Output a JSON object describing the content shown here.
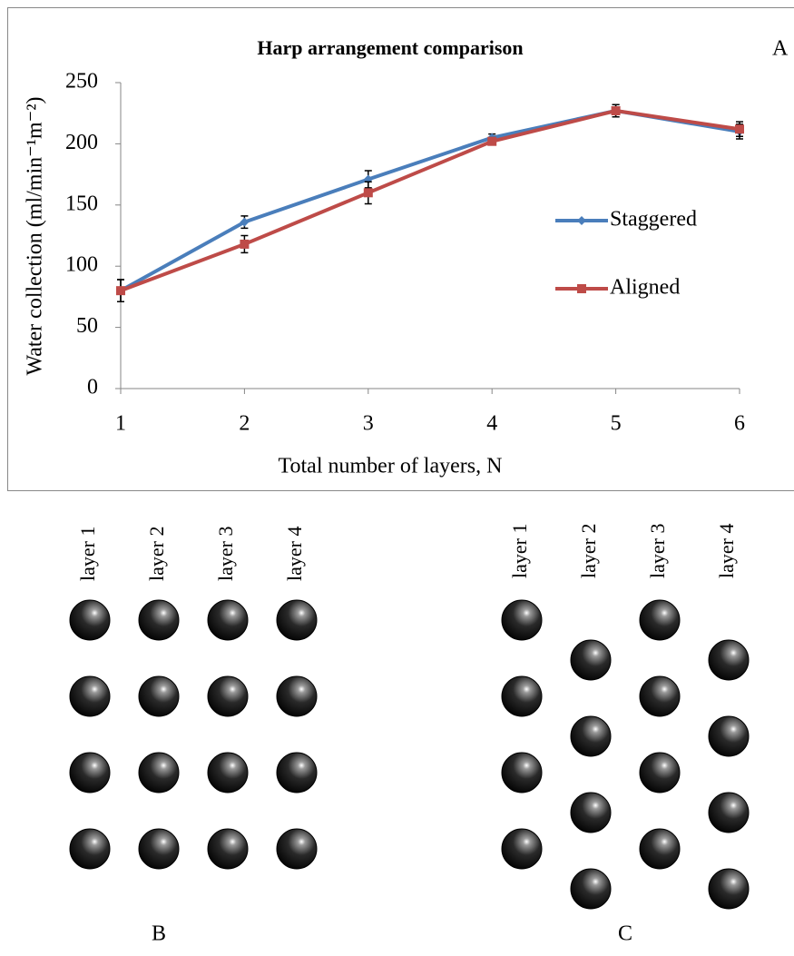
{
  "chart_data": {
    "type": "line",
    "title": "Harp arrangement comparison",
    "panel_label": "A",
    "x_label": "Total number of layers, N",
    "y_label": "Water collection (ml/min⁻¹m⁻²)",
    "x": [
      1,
      2,
      3,
      4,
      5,
      6
    ],
    "xlim": [
      1,
      6
    ],
    "xticks": [
      1,
      2,
      3,
      4,
      5,
      6
    ],
    "ylim": [
      0,
      250
    ],
    "yticks": [
      0,
      50,
      100,
      150,
      200,
      250
    ],
    "grid": false,
    "legend": "right",
    "series": [
      {
        "name": "Staggered",
        "color": "#4a7ebb",
        "marker": "diamond",
        "values": [
          80,
          136,
          171,
          205,
          227,
          210
        ],
        "errors": [
          9,
          5,
          7,
          3,
          5,
          6
        ]
      },
      {
        "name": "Aligned",
        "color": "#be4b48",
        "marker": "square",
        "values": [
          80,
          118,
          160,
          202,
          227,
          212
        ],
        "errors": [
          9,
          7,
          9,
          3,
          5,
          6
        ]
      }
    ]
  },
  "diagrams": [
    {
      "label": "B",
      "layers": [
        "layer 1",
        "layer 2",
        "layer 3",
        "layer 4"
      ]
    },
    {
      "label": "C",
      "layers": [
        "layer 1",
        "layer 2",
        "layer 3",
        "layer 4"
      ]
    }
  ]
}
